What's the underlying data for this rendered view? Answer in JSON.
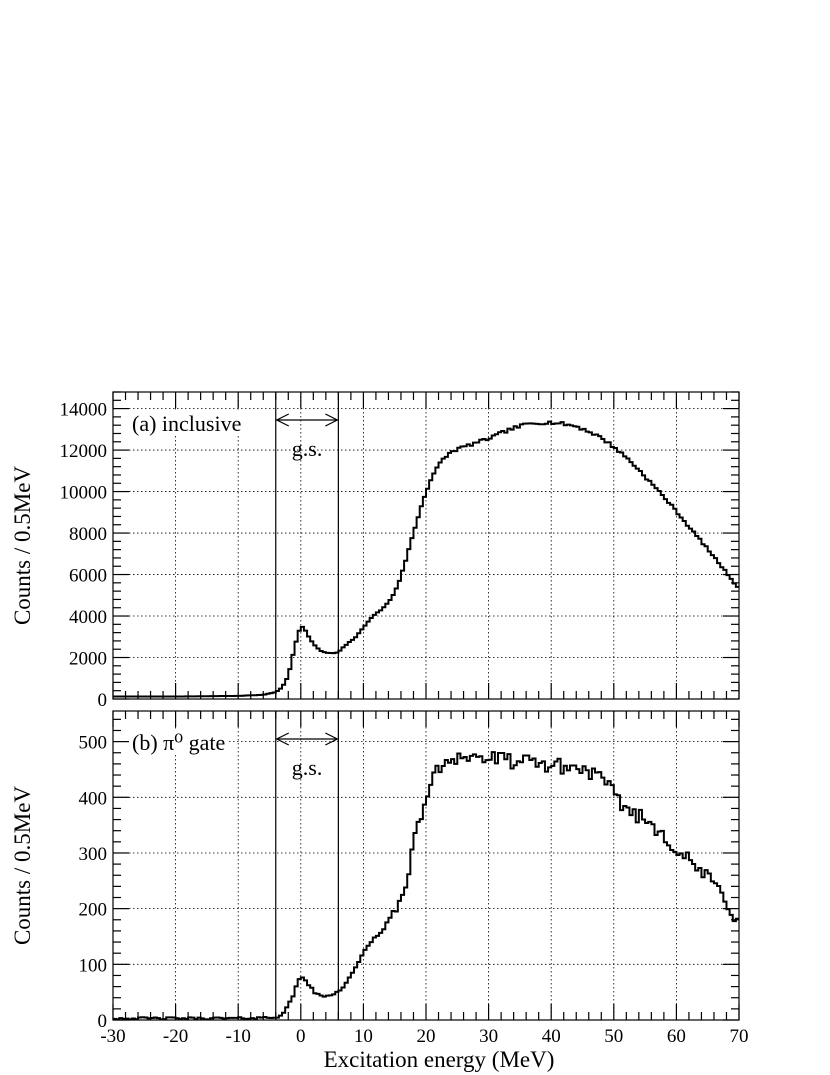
{
  "chart_data": [
    {
      "type": "histogram",
      "panel_label": "(a) inclusive",
      "window_label": "g.s.",
      "ylabel": "Counts / 0.5MeV",
      "xlabel": "",
      "xlim": [
        -30,
        70
      ],
      "ylim": [
        0,
        14800
      ],
      "xticks": [
        -30,
        -20,
        -10,
        0,
        10,
        20,
        30,
        40,
        50,
        60,
        70
      ],
      "yticks": [
        0,
        2000,
        4000,
        6000,
        8000,
        10000,
        12000,
        14000
      ],
      "grid": true,
      "gs_window": [
        -4,
        6
      ],
      "bin_width": 0.5,
      "curve": [
        [
          -30,
          120
        ],
        [
          -20,
          120
        ],
        [
          -10,
          150
        ],
        [
          -6,
          200
        ],
        [
          -4,
          330
        ],
        [
          -3,
          550
        ],
        [
          -2,
          1100
        ],
        [
          -1.2,
          2200
        ],
        [
          -0.5,
          3100
        ],
        [
          0,
          3520
        ],
        [
          0.5,
          3420
        ],
        [
          1,
          3150
        ],
        [
          2,
          2650
        ],
        [
          3,
          2350
        ],
        [
          4,
          2230
        ],
        [
          5,
          2200
        ],
        [
          6,
          2250
        ],
        [
          7,
          2550
        ],
        [
          8,
          2800
        ],
        [
          9,
          3050
        ],
        [
          10,
          3450
        ],
        [
          11,
          3850
        ],
        [
          12,
          4100
        ],
        [
          13,
          4350
        ],
        [
          14,
          4650
        ],
        [
          15,
          5150
        ],
        [
          16,
          5900
        ],
        [
          17,
          6950
        ],
        [
          18,
          8000
        ],
        [
          19,
          9050
        ],
        [
          20,
          10000
        ],
        [
          21,
          10750
        ],
        [
          22,
          11250
        ],
        [
          23,
          11650
        ],
        [
          24,
          11900
        ],
        [
          25,
          12050
        ],
        [
          27,
          12250
        ],
        [
          30,
          12550
        ],
        [
          33,
          12950
        ],
        [
          36,
          13250
        ],
        [
          38,
          13320
        ],
        [
          40,
          13330
        ],
        [
          42,
          13260
        ],
        [
          44,
          13150
        ],
        [
          46,
          12900
        ],
        [
          48,
          12600
        ],
        [
          50,
          12150
        ],
        [
          52,
          11650
        ],
        [
          54,
          11050
        ],
        [
          56,
          10400
        ],
        [
          58,
          9750
        ],
        [
          60,
          9050
        ],
        [
          62,
          8300
        ],
        [
          64,
          7600
        ],
        [
          66,
          6850
        ],
        [
          68,
          6100
        ],
        [
          69,
          5700
        ],
        [
          70,
          5300
        ]
      ]
    },
    {
      "type": "histogram",
      "panel_label": "(b) π⁰ gate",
      "window_label": "g.s.",
      "ylabel": "Counts / 0.5MeV",
      "xlabel": "Excitation energy (MeV)",
      "xlim": [
        -30,
        70
      ],
      "ylim": [
        0,
        555
      ],
      "xticks": [
        -30,
        -20,
        -10,
        0,
        10,
        20,
        30,
        40,
        50,
        60,
        70
      ],
      "yticks": [
        0,
        100,
        200,
        300,
        400,
        500
      ],
      "grid": true,
      "gs_window": [
        -4,
        6
      ],
      "bin_width": 0.5,
      "noise": 14,
      "curve": [
        [
          -30,
          3
        ],
        [
          -20,
          3
        ],
        [
          -10,
          3
        ],
        [
          -6,
          4
        ],
        [
          -4,
          5
        ],
        [
          -3,
          10
        ],
        [
          -2,
          25
        ],
        [
          -1,
          50
        ],
        [
          -0.5,
          68
        ],
        [
          0,
          78
        ],
        [
          0.5,
          76
        ],
        [
          1,
          68
        ],
        [
          2,
          52
        ],
        [
          3,
          43
        ],
        [
          4,
          42
        ],
        [
          5,
          46
        ],
        [
          6,
          52
        ],
        [
          7,
          62
        ],
        [
          8,
          80
        ],
        [
          9,
          100
        ],
        [
          10,
          120
        ],
        [
          11,
          135
        ],
        [
          12,
          148
        ],
        [
          13,
          165
        ],
        [
          14,
          178
        ],
        [
          15,
          190
        ],
        [
          16,
          215
        ],
        [
          17,
          260
        ],
        [
          18,
          310
        ],
        [
          19,
          360
        ],
        [
          20,
          400
        ],
        [
          21,
          430
        ],
        [
          22,
          450
        ],
        [
          23,
          465
        ],
        [
          25,
          475
        ],
        [
          27,
          472
        ],
        [
          30,
          470
        ],
        [
          33,
          466
        ],
        [
          36,
          462
        ],
        [
          40,
          458
        ],
        [
          44,
          452
        ],
        [
          46,
          448
        ],
        [
          48,
          432
        ],
        [
          50,
          405
        ],
        [
          52,
          380
        ],
        [
          55,
          360
        ],
        [
          58,
          335
        ],
        [
          60,
          305
        ],
        [
          62,
          285
        ],
        [
          64,
          265
        ],
        [
          66,
          245
        ],
        [
          68,
          215
        ],
        [
          69,
          190
        ],
        [
          70,
          185
        ]
      ]
    }
  ]
}
